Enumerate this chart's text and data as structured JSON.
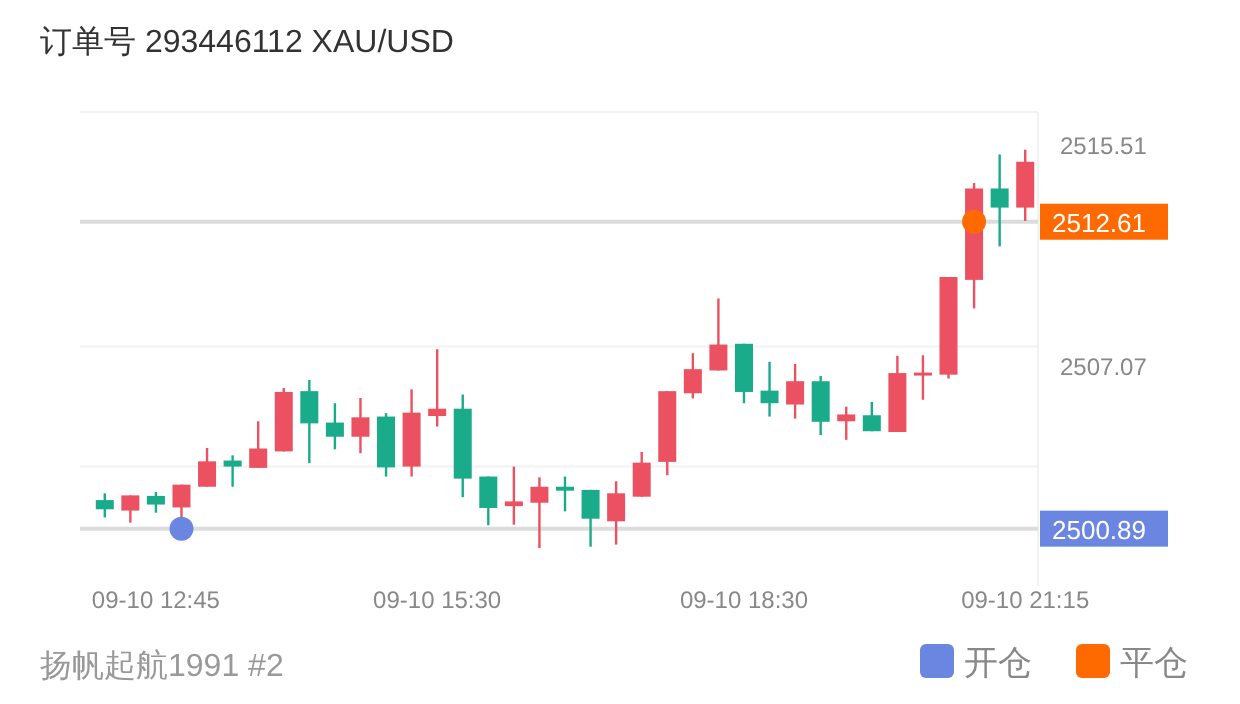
{
  "chart_data": {
    "type": "candlestick",
    "title": "订单号 293446112    XAU/USD",
    "annotations": [
      "扬帆起航1991 #2"
    ],
    "categories": [
      null,
      null,
      "09-10 12:45",
      null,
      null,
      null,
      null,
      null,
      null,
      null,
      null,
      null,
      null,
      "09-10 15:30",
      null,
      null,
      null,
      null,
      null,
      null,
      null,
      null,
      null,
      null,
      null,
      "09-10 18:30",
      null,
      null,
      null,
      null,
      null,
      null,
      null,
      null,
      null,
      null,
      "09-10 21:15"
    ],
    "ohlc": [
      [
        2501.98,
        2502.24,
        2501.32,
        2501.63
      ],
      [
        2501.58,
        2502.16,
        2501.12,
        2502.16
      ],
      [
        2502.14,
        2502.29,
        2501.5,
        2501.81
      ],
      [
        2501.7,
        2502.57,
        2501.22,
        2502.57
      ],
      [
        2502.49,
        2503.97,
        2502.49,
        2503.46
      ],
      [
        2503.49,
        2503.69,
        2502.49,
        2503.26
      ],
      [
        2503.21,
        2504.99,
        2503.21,
        2503.95
      ],
      [
        2503.84,
        2506.26,
        2503.84,
        2506.11
      ],
      [
        2506.14,
        2506.57,
        2503.39,
        2504.91
      ],
      [
        2504.94,
        2505.68,
        2503.92,
        2504.4
      ],
      [
        2504.4,
        2505.88,
        2503.77,
        2505.14
      ],
      [
        2505.17,
        2505.3,
        2502.88,
        2503.23
      ],
      [
        2503.26,
        2506.21,
        2502.88,
        2505.32
      ],
      [
        2505.19,
        2507.74,
        2504.79,
        2505.47
      ],
      [
        2505.47,
        2506.01,
        2502.09,
        2502.8
      ],
      [
        2502.88,
        2502.88,
        2501.02,
        2501.68
      ],
      [
        2501.75,
        2503.26,
        2501.04,
        2501.93
      ],
      [
        2501.88,
        2502.85,
        2500.15,
        2502.49
      ],
      [
        2502.49,
        2502.88,
        2501.55,
        2502.34
      ],
      [
        2502.37,
        2502.37,
        2500.2,
        2501.27
      ],
      [
        2501.17,
        2502.7,
        2500.28,
        2502.24
      ],
      [
        2502.11,
        2503.82,
        2502.11,
        2503.41
      ],
      [
        2503.44,
        2506.14,
        2502.93,
        2506.14
      ],
      [
        2506.06,
        2507.59,
        2505.86,
        2506.98
      ],
      [
        2506.93,
        2509.68,
        2506.93,
        2507.92
      ],
      [
        2507.95,
        2507.95,
        2505.68,
        2506.11
      ],
      [
        2506.16,
        2507.26,
        2505.17,
        2505.68
      ],
      [
        2505.63,
        2507.18,
        2505.09,
        2506.52
      ],
      [
        2506.52,
        2506.72,
        2504.46,
        2504.97
      ],
      [
        2504.99,
        2505.55,
        2504.28,
        2505.25
      ],
      [
        2505.22,
        2505.73,
        2504.61,
        2504.61
      ],
      [
        2504.58,
        2507.49,
        2504.58,
        2506.83
      ],
      [
        2506.77,
        2507.51,
        2505.81,
        2506.85
      ],
      [
        2506.77,
        2510.5,
        2506.62,
        2510.5
      ],
      [
        2510.39,
        2514.09,
        2509.3,
        2513.88
      ],
      [
        2513.88,
        2515.18,
        2511.67,
        2513.15
      ],
      [
        2513.15,
        2515.36,
        2512.64,
        2514.9
      ]
    ],
    "colors": [
      "#1aab8a",
      "#eb5160",
      "#1aab8a",
      "#eb5160",
      "#eb5160",
      "#1aab8a",
      "#eb5160",
      "#eb5160",
      "#1aab8a",
      "#1aab8a",
      "#eb5160",
      "#1aab8a",
      "#eb5160",
      "#eb5160",
      "#1aab8a",
      "#1aab8a",
      "#eb5160",
      "#eb5160",
      "#1aab8a",
      "#1aab8a",
      "#eb5160",
      "#eb5160",
      "#eb5160",
      "#eb5160",
      "#eb5160",
      "#1aab8a",
      "#1aab8a",
      "#eb5160",
      "#1aab8a",
      "#eb5160",
      "#1aab8a",
      "#eb5160",
      "#eb5160",
      "#eb5160",
      "#eb5160",
      "#1aab8a",
      "#eb5160"
    ],
    "series": [
      {
        "type": "scatter",
        "name": "开仓",
        "color": "#6b86e0",
        "values": [
          null,
          null,
          null,
          2500.89,
          null,
          null,
          null,
          null,
          null,
          null,
          null,
          null,
          null,
          null,
          null,
          null,
          null,
          null,
          null,
          null,
          null,
          null,
          null,
          null,
          null,
          null,
          null,
          null,
          null,
          null,
          null,
          null,
          null,
          null,
          null,
          null,
          null
        ]
      },
      {
        "type": "scatter",
        "name": "平仓",
        "color": "#ff6a00",
        "values": [
          null,
          null,
          null,
          null,
          null,
          null,
          null,
          null,
          null,
          null,
          null,
          null,
          null,
          null,
          null,
          null,
          null,
          null,
          null,
          null,
          null,
          null,
          null,
          null,
          null,
          null,
          null,
          null,
          null,
          null,
          null,
          null,
          null,
          null,
          2512.61,
          null,
          null
        ]
      }
    ],
    "marker": "circle",
    "ylim": [
      2498.7,
      2516.8
    ],
    "yticks": [
      2515.51,
      {
        "value": 2507.85,
        "label": null
      },
      2507.07,
      {
        "value": 2503.26,
        "label": null
      }
    ],
    "ref_lines": [
      {
        "axis": "y",
        "value": 2500.89,
        "label": "2500.89"
      },
      {
        "axis": "y",
        "value": 2512.61,
        "label": "2512.61"
      }
    ],
    "grid": true,
    "legend": "bottom right"
  }
}
